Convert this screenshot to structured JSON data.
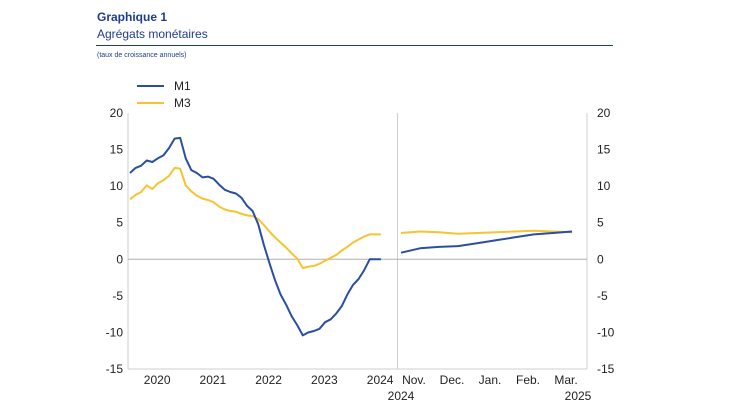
{
  "header": {
    "title": "Graphique 1",
    "subtitle": "Agrégats monétaires",
    "note": "(taux de croissance annuels)"
  },
  "chart_data": {
    "type": "line",
    "title": "Graphique 1",
    "subtitle": "Agrégats monétaires",
    "ylabel": "(taux de croissance annuels)",
    "ylim": [
      -15,
      20
    ],
    "yticks": [
      "20",
      "15",
      "10",
      "5",
      "0",
      "-5",
      "-10",
      "-15"
    ],
    "grid": false,
    "legend": "top-left",
    "colors": {
      "M1": "#2a4fa0",
      "M3": "#f6c430",
      "zero_line": "#b0b0b0"
    },
    "panels": [
      {
        "name": "historical",
        "xrange": [
          2019.8,
          2024.5
        ],
        "xtick_labels": [
          {
            "x": 2020,
            "label": "2020"
          },
          {
            "x": 2021,
            "label": "2021"
          },
          {
            "x": 2022,
            "label": "2022"
          },
          {
            "x": 2023,
            "label": "2023"
          },
          {
            "x": 2024,
            "label": "2024"
          }
        ],
        "series": [
          {
            "name": "M1",
            "x": [
              2019.8,
              2019.9,
              2020.0,
              2020.1,
              2020.2,
              2020.3,
              2020.4,
              2020.5,
              2020.6,
              2020.7,
              2020.8,
              2020.9,
              2021.0,
              2021.1,
              2021.2,
              2021.3,
              2021.4,
              2021.5,
              2021.6,
              2021.7,
              2021.8,
              2021.9,
              2022.0,
              2022.1,
              2022.2,
              2022.3,
              2022.4,
              2022.5,
              2022.6,
              2022.7,
              2022.8,
              2022.9,
              2023.0,
              2023.1,
              2023.2,
              2023.3,
              2023.4,
              2023.5,
              2023.6,
              2023.7,
              2023.8,
              2023.9,
              2024.0,
              2024.1,
              2024.2,
              2024.3
            ],
            "values": [
              11.8,
              12.5,
              12.8,
              13.5,
              13.3,
              13.8,
              14.2,
              15.2,
              16.5,
              16.6,
              13.8,
              12.2,
              11.8,
              11.2,
              11.3,
              11.0,
              10.2,
              9.5,
              9.2,
              9.0,
              8.4,
              7.3,
              6.6,
              4.8,
              2.0,
              -0.5,
              -2.8,
              -4.8,
              -6.2,
              -7.8,
              -9.0,
              -10.4,
              -10.0,
              -9.8,
              -9.5,
              -8.6,
              -8.2,
              -7.4,
              -6.4,
              -4.8,
              -3.5,
              -2.7,
              -1.5,
              0.0,
              0.0,
              0.0
            ]
          },
          {
            "name": "M3",
            "x": [
              2019.8,
              2019.9,
              2020.0,
              2020.1,
              2020.2,
              2020.3,
              2020.4,
              2020.5,
              2020.6,
              2020.7,
              2020.8,
              2020.9,
              2021.0,
              2021.1,
              2021.2,
              2021.3,
              2021.4,
              2021.5,
              2021.6,
              2021.7,
              2021.8,
              2021.9,
              2022.0,
              2022.1,
              2022.2,
              2022.3,
              2022.4,
              2022.5,
              2022.6,
              2022.7,
              2022.8,
              2022.9,
              2023.0,
              2023.1,
              2023.2,
              2023.3,
              2023.4,
              2023.5,
              2023.6,
              2023.7,
              2023.8,
              2023.9,
              2024.0,
              2024.1,
              2024.2,
              2024.3
            ],
            "values": [
              8.2,
              8.8,
              9.2,
              10.1,
              9.6,
              10.4,
              10.8,
              11.4,
              12.5,
              12.4,
              10.1,
              9.3,
              8.7,
              8.3,
              8.1,
              7.8,
              7.2,
              6.8,
              6.6,
              6.5,
              6.2,
              6.0,
              5.9,
              5.5,
              4.7,
              3.8,
              3.0,
              2.3,
              1.6,
              0.8,
              0.1,
              -1.2,
              -1.0,
              -0.9,
              -0.6,
              -0.2,
              0.2,
              0.6,
              1.2,
              1.7,
              2.3,
              2.7,
              3.1,
              3.4,
              3.4,
              3.4
            ]
          }
        ]
      },
      {
        "name": "recent",
        "xtick_labels": [
          {
            "x": 0.5,
            "label": "Nov."
          },
          {
            "x": 1.5,
            "label": "Dec."
          },
          {
            "x": 2.5,
            "label": "Jan."
          },
          {
            "x": 3.5,
            "label": "Feb."
          },
          {
            "x": 4.5,
            "label": "Mar."
          }
        ],
        "year_labels": [
          {
            "x": 0.0,
            "label": "2024"
          },
          {
            "x": 5.0,
            "label": "2025"
          }
        ],
        "series": [
          {
            "name": "M1",
            "x": [
              0.0,
              0.5,
              1.0,
              1.5,
              2.0,
              2.5,
              3.0,
              3.5,
              4.0,
              4.5
            ],
            "values": [
              0.9,
              1.5,
              1.7,
              1.8,
              2.2,
              2.6,
              3.0,
              3.4,
              3.6,
              3.8
            ]
          },
          {
            "name": "M3",
            "x": [
              0.0,
              0.5,
              1.0,
              1.5,
              2.0,
              2.5,
              3.0,
              3.5,
              4.0,
              4.5
            ],
            "values": [
              3.6,
              3.8,
              3.7,
              3.5,
              3.6,
              3.7,
              3.8,
              3.9,
              3.8,
              3.7
            ]
          }
        ]
      }
    ]
  }
}
